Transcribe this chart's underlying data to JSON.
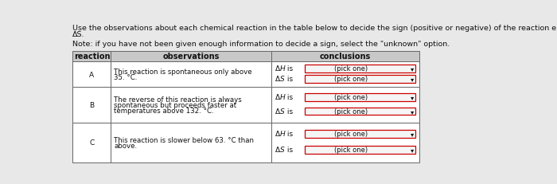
{
  "title_line1": "Use the observations about each chemical reaction in the table below to decide the sign (positive or negative) of the reaction enthalpy ΔH and reaction entropy",
  "title_line2": "ΔS.",
  "note": "Note: if you have not been given enough information to decide a sign, select the \"unknown\" option.",
  "col_headers": [
    "reaction",
    "observations",
    "conclusions"
  ],
  "rows": [
    {
      "label": "A",
      "observation": "This reaction is spontaneous only above\n35. °C.",
      "dH_box": "(pick one)",
      "dS_box": "(pick one)"
    },
    {
      "label": "B",
      "observation": "The reverse of this reaction is always\nspontaneous but proceeds faster at\ntemperatures above 132. °C.",
      "dH_box": "(pick one)",
      "dS_box": "(pick one)"
    },
    {
      "label": "C",
      "observation": "This reaction is slower below 63. °C than\nabove.",
      "dH_box": "(pick one)",
      "dS_box": "(pick one)"
    }
  ],
  "bg_color": "#e8e8e8",
  "table_bg": "#ffffff",
  "header_bg": "#c8c8c8",
  "border_color": "#666666",
  "box_border": "#cc0000",
  "text_color": "#111111",
  "fig_width": 7.0,
  "fig_height": 2.32
}
